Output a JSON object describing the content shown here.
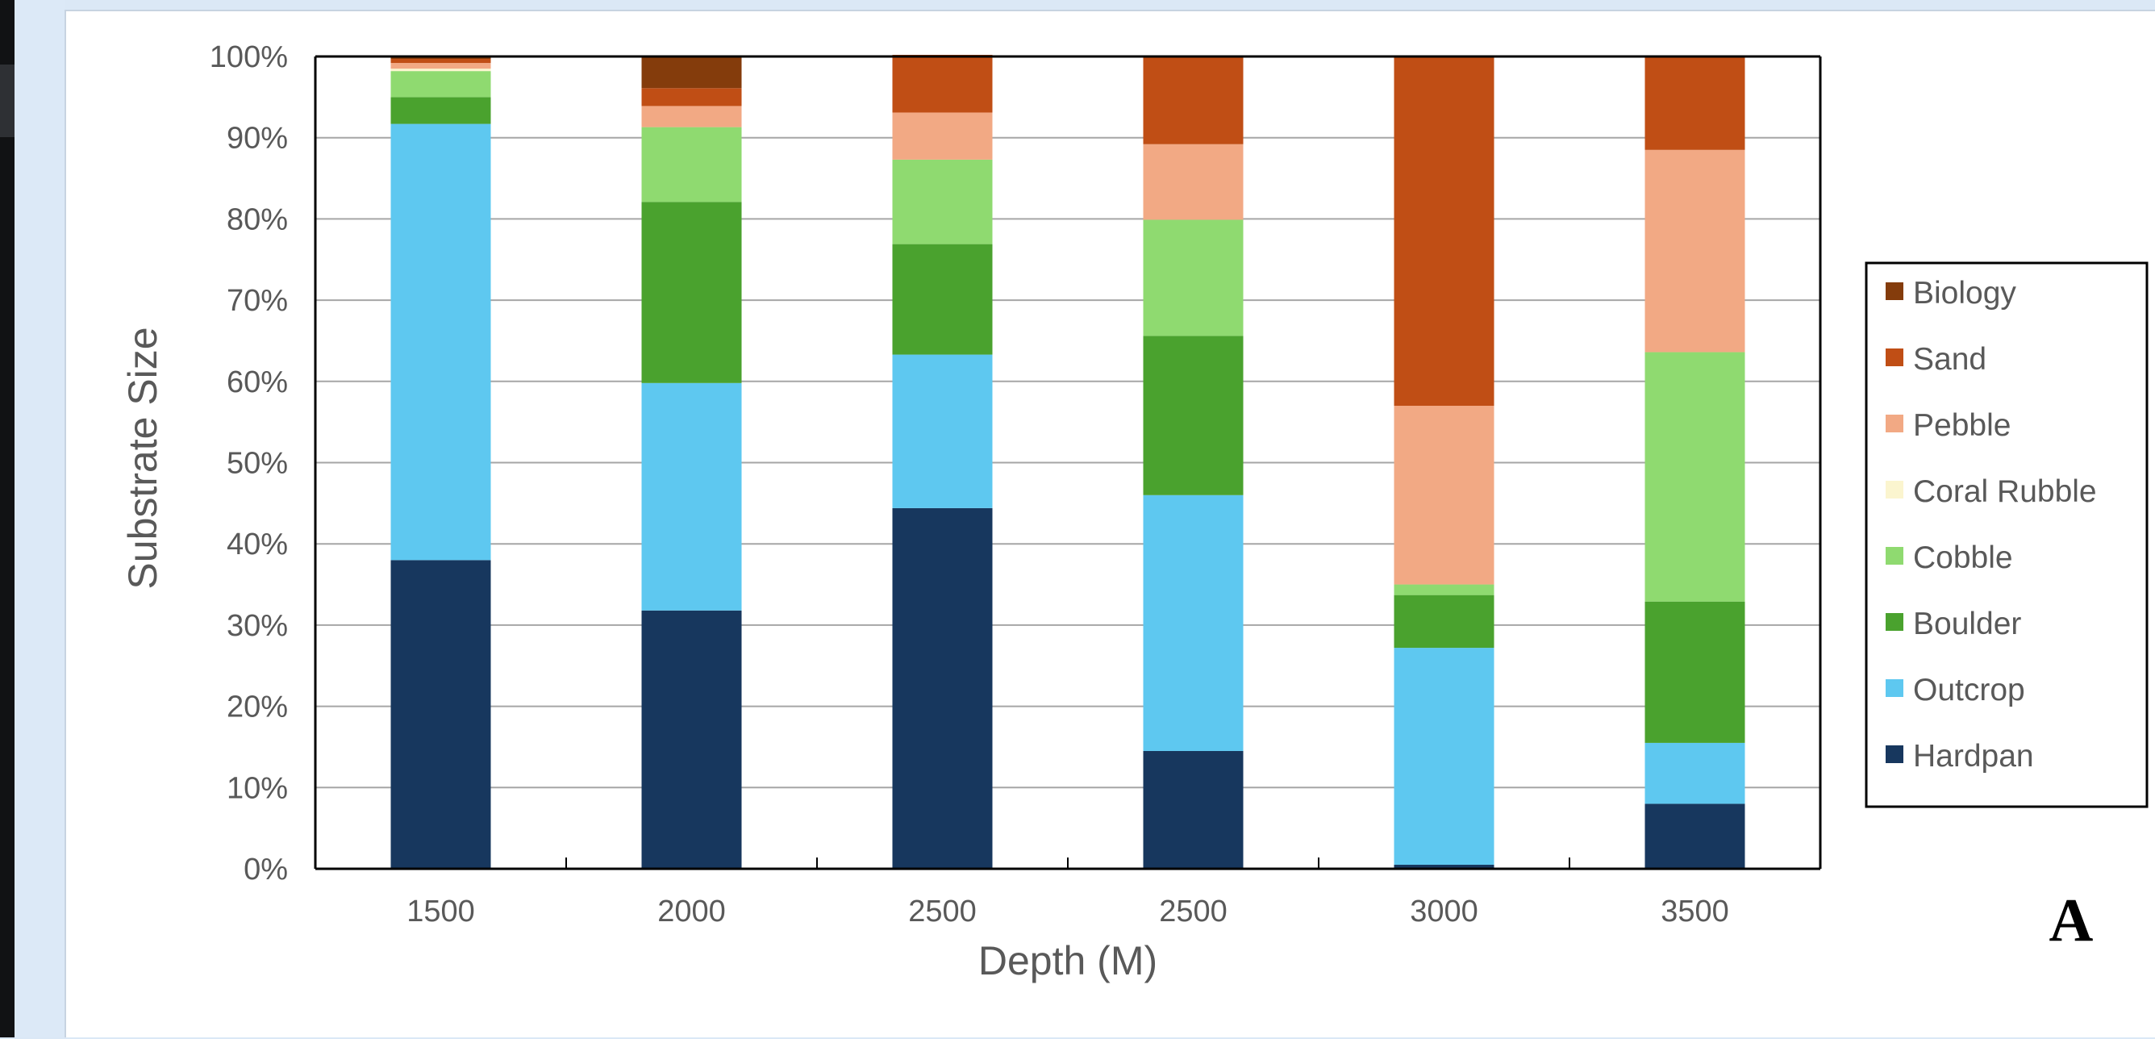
{
  "chart_data": {
    "type": "bar",
    "stacked": true,
    "categories": [
      "1500",
      "2000",
      "2500",
      "2500",
      "3000",
      "3500"
    ],
    "xlabel": "Depth (M)",
    "ylabel": "Substrate Size",
    "ylim": [
      0,
      100
    ],
    "yticks": [
      "0%",
      "10%",
      "20%",
      "30%",
      "40%",
      "50%",
      "60%",
      "70%",
      "80%",
      "90%",
      "100%"
    ],
    "grid": true,
    "legend_position": "right",
    "panel_label": "A",
    "series": [
      {
        "name": "Hardpan",
        "color": "#17375e",
        "values": [
          38,
          31.8,
          44.4,
          14.5,
          0.5,
          8
        ]
      },
      {
        "name": "Outcrop",
        "color": "#5ec8f0",
        "values": [
          53.7,
          28,
          18.9,
          31.5,
          26.7,
          7.5
        ]
      },
      {
        "name": "Boulder",
        "color": "#4aa22e",
        "values": [
          3.3,
          22.3,
          13.6,
          19.6,
          6.5,
          17.4
        ]
      },
      {
        "name": "Cobble",
        "color": "#8fda70",
        "values": [
          3.2,
          9.2,
          10.4,
          14.3,
          1.3,
          30.7
        ]
      },
      {
        "name": "Coral Rubble",
        "color": "#fbf5cf",
        "values": [
          0.3,
          0,
          0,
          0,
          0,
          0
        ]
      },
      {
        "name": "Pebble",
        "color": "#f2a984",
        "values": [
          0.7,
          2.6,
          5.8,
          9.3,
          22,
          24.9
        ]
      },
      {
        "name": "Sand",
        "color": "#c04e15",
        "values": [
          0.5,
          2.2,
          7.1,
          10.8,
          43,
          11.5
        ]
      },
      {
        "name": "Biology",
        "color": "#843c0c",
        "values": [
          0.3,
          3.9,
          0,
          0,
          0,
          0
        ]
      }
    ]
  }
}
